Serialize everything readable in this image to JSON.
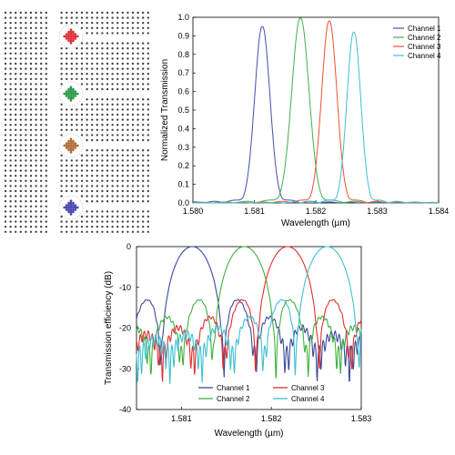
{
  "lattice": {
    "description_icon": "photonic-crystal-lattice-icon",
    "cavity_colors": [
      "#e0303a",
      "#2e9a4a",
      "#b0703a",
      "#4a4ab0"
    ]
  },
  "chart_data": [
    {
      "type": "line",
      "xlabel": "Wavelength (µm)",
      "ylabel": "Normalized Transmission",
      "xlim": [
        1.58,
        1.584
      ],
      "ylim": [
        0.0,
        1.0
      ],
      "xticks": [
        "1.580",
        "1.581",
        "1.582",
        "1.583",
        "1.584"
      ],
      "yticks": [
        "0.0",
        "0.1",
        "0.2",
        "0.3",
        "0.4",
        "0.5",
        "0.6",
        "0.7",
        "0.8",
        "0.9",
        "1.0"
      ],
      "legend_position": "top-right",
      "series": [
        {
          "name": "Channel 1",
          "color": "#4050b0",
          "peak_x": 1.58113,
          "peak_y": 0.95,
          "width": 0.00022
        },
        {
          "name": "Channel 2",
          "color": "#40b050",
          "peak_x": 1.58175,
          "peak_y": 0.995,
          "width": 0.00025
        },
        {
          "name": "Channel 3",
          "color": "#f05030",
          "peak_x": 1.58222,
          "peak_y": 0.98,
          "width": 0.00022
        },
        {
          "name": "Channel 4",
          "color": "#40c0d0",
          "peak_x": 1.58262,
          "peak_y": 0.92,
          "width": 0.0002
        }
      ]
    },
    {
      "type": "line",
      "xlabel": "Wavelength (µm)",
      "ylabel": "Transmission efficiency (dB)",
      "xlim": [
        1.5805,
        1.583
      ],
      "ylim": [
        -40,
        0
      ],
      "xticks": [
        "1.581",
        "1.582",
        "1.583"
      ],
      "xtick_values": [
        1.581,
        1.582,
        1.583
      ],
      "yticks": [
        "0",
        "-10",
        "-20",
        "-30",
        "-40"
      ],
      "ytick_values": [
        0,
        -10,
        -20,
        -30,
        -40
      ],
      "legend_position": "bottom-left",
      "series": [
        {
          "name": "Channel 1",
          "color": "#3a4a9a",
          "peak_x": 1.58112,
          "floor": -28
        },
        {
          "name": "Channel 2",
          "color": "#40b040",
          "peak_x": 1.5817,
          "floor": -27
        },
        {
          "name": "Channel 3",
          "color": "#e03030",
          "peak_x": 1.58218,
          "floor": -26
        },
        {
          "name": "Channel 4",
          "color": "#40c0d0",
          "peak_x": 1.58262,
          "floor": -31
        }
      ]
    }
  ]
}
